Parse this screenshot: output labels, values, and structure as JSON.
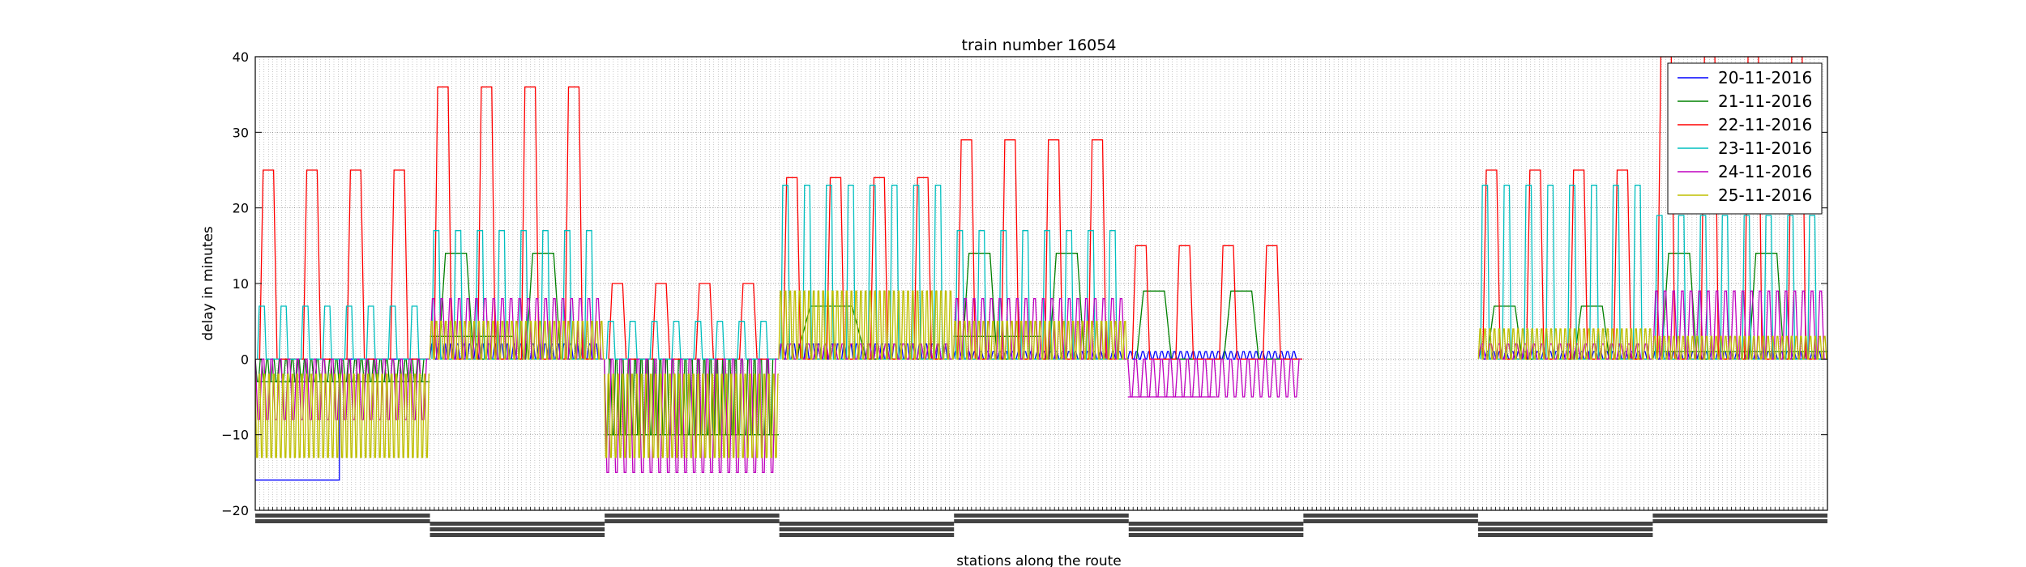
{
  "chart_data": {
    "type": "line",
    "title": "train number 16054",
    "xlabel": "stations along the route",
    "ylabel": "delay in minutes",
    "ylim": [
      -20,
      40
    ],
    "yticks": [
      -20,
      -10,
      0,
      10,
      20,
      30,
      40
    ],
    "ytick_labels": [
      "−20",
      "−10",
      "0",
      "10",
      "20",
      "30",
      "40"
    ],
    "grid": true,
    "legend_position": "top-right",
    "x_tick_count": 360,
    "series": [
      {
        "name": "20-11-2016",
        "color": "#0000ff",
        "segments": [
          {
            "type": "step",
            "x": [
              0,
              0.0535,
              0.0535,
              0.111
            ],
            "y": [
              -16,
              -16,
              0,
              0
            ]
          },
          {
            "type": "osc",
            "x0": 0.111,
            "x1": 0.222,
            "base": 0,
            "peak": 2,
            "period": 0.004
          },
          {
            "type": "osc",
            "x0": 0.333,
            "x1": 0.444,
            "base": 0,
            "peak": 2,
            "period": 0.004
          },
          {
            "type": "osc",
            "x0": 0.444,
            "x1": 0.555,
            "base": 0,
            "peak": 1,
            "period": 0.004
          },
          {
            "type": "osc",
            "x0": 0.555,
            "x1": 0.666,
            "base": 0,
            "peak": 1,
            "period": 0.004
          },
          {
            "type": "osc",
            "x0": 0.778,
            "x1": 0.889,
            "base": 0,
            "peak": 1,
            "period": 0.004
          },
          {
            "type": "osc",
            "x0": 0.889,
            "x1": 1.0,
            "base": 0,
            "peak": 1,
            "period": 0.004
          }
        ]
      },
      {
        "name": "21-11-2016",
        "color": "#008000",
        "segments": [
          {
            "type": "osc",
            "x0": 0,
            "x1": 0.111,
            "base": 0,
            "peak": -3,
            "period": 0.004
          },
          {
            "type": "level",
            "x0": 0,
            "x1": 0.111,
            "y": -3
          },
          {
            "type": "pulse",
            "x0": 0.111,
            "x1": 0.222,
            "base": 0,
            "peak": 14,
            "count": 2
          },
          {
            "type": "level",
            "x0": 0.111,
            "x1": 0.164,
            "y": 3
          },
          {
            "type": "osc",
            "x0": 0.222,
            "x1": 0.333,
            "base": 0,
            "peak": -10,
            "period": 0.004
          },
          {
            "type": "level",
            "x0": 0.222,
            "x1": 0.333,
            "y": -10
          },
          {
            "type": "pulse",
            "x0": 0.333,
            "x1": 0.444,
            "base": 0,
            "peak": 7,
            "count": 1
          },
          {
            "type": "pulse",
            "x0": 0.444,
            "x1": 0.555,
            "base": 0,
            "peak": 14,
            "count": 2
          },
          {
            "type": "level",
            "x0": 0.444,
            "x1": 0.5,
            "y": 3
          },
          {
            "type": "pulse",
            "x0": 0.555,
            "x1": 0.666,
            "base": 0,
            "peak": 9,
            "count": 2
          },
          {
            "type": "pulse",
            "x0": 0.778,
            "x1": 0.889,
            "base": 0,
            "peak": 7,
            "count": 2
          },
          {
            "type": "pulse",
            "x0": 0.889,
            "x1": 1.0,
            "base": 0,
            "peak": 14,
            "count": 2
          },
          {
            "type": "level",
            "x0": 0.889,
            "x1": 1.0,
            "y": 1
          }
        ]
      },
      {
        "name": "22-11-2016",
        "color": "#ff0000",
        "segments": [
          {
            "type": "pulse",
            "x0": 0,
            "x1": 0.111,
            "base": 0,
            "peak": 25,
            "count": 4
          },
          {
            "type": "pulse",
            "x0": 0.111,
            "x1": 0.222,
            "base": 0,
            "peak": 36,
            "count": 4
          },
          {
            "type": "pulse",
            "x0": 0.222,
            "x1": 0.333,
            "base": 0,
            "peak": 10,
            "count": 4
          },
          {
            "type": "pulse",
            "x0": 0.333,
            "x1": 0.444,
            "base": 0,
            "peak": 24,
            "count": 4
          },
          {
            "type": "pulse",
            "x0": 0.444,
            "x1": 0.555,
            "base": 0,
            "peak": 29,
            "count": 4
          },
          {
            "type": "pulse",
            "x0": 0.555,
            "x1": 0.666,
            "base": 0,
            "peak": 15,
            "count": 4
          },
          {
            "type": "pulse",
            "x0": 0.778,
            "x1": 0.889,
            "base": 0,
            "peak": 25,
            "count": 4
          },
          {
            "type": "pulse",
            "x0": 0.889,
            "x1": 1.0,
            "base": 0,
            "peak": 40,
            "count": 4
          }
        ]
      },
      {
        "name": "23-11-2016",
        "color": "#00bfbf",
        "segments": [
          {
            "type": "pulse",
            "x0": 0,
            "x1": 0.111,
            "base": 0,
            "peak": 7,
            "count": 8
          },
          {
            "type": "pulse",
            "x0": 0.111,
            "x1": 0.222,
            "base": 0,
            "peak": 17,
            "count": 8
          },
          {
            "type": "pulse",
            "x0": 0.222,
            "x1": 0.333,
            "base": 0,
            "peak": 5,
            "count": 8
          },
          {
            "type": "pulse",
            "x0": 0.333,
            "x1": 0.444,
            "base": 0,
            "peak": 23,
            "count": 8
          },
          {
            "type": "pulse",
            "x0": 0.444,
            "x1": 0.555,
            "base": 0,
            "peak": 17,
            "count": 8
          },
          {
            "type": "pulse",
            "x0": 0.778,
            "x1": 0.889,
            "base": 0,
            "peak": 23,
            "count": 8
          },
          {
            "type": "pulse",
            "x0": 0.889,
            "x1": 1.0,
            "base": 0,
            "peak": 19,
            "count": 8
          }
        ]
      },
      {
        "name": "24-11-2016",
        "color": "#bf00bf",
        "segments": [
          {
            "type": "osc",
            "x0": 0,
            "x1": 0.111,
            "base": 0,
            "peak": -8,
            "period": 0.0055
          },
          {
            "type": "osc",
            "x0": 0.111,
            "x1": 0.222,
            "base": 0,
            "peak": 8,
            "period": 0.0055
          },
          {
            "type": "osc",
            "x0": 0.222,
            "x1": 0.333,
            "base": 0,
            "peak": -15,
            "period": 0.0055
          },
          {
            "type": "osc",
            "x0": 0.333,
            "x1": 0.444,
            "base": 0,
            "peak": 2,
            "period": 0.0055
          },
          {
            "type": "osc",
            "x0": 0.444,
            "x1": 0.555,
            "base": 0,
            "peak": 8,
            "period": 0.0055
          },
          {
            "type": "osc",
            "x0": 0.555,
            "x1": 0.666,
            "base": 0,
            "peak": -5,
            "period": 0.0055
          },
          {
            "type": "level",
            "x0": 0.555,
            "x1": 0.611,
            "y": -5
          },
          {
            "type": "osc",
            "x0": 0.778,
            "x1": 0.889,
            "base": 0,
            "peak": 2,
            "period": 0.0055
          },
          {
            "type": "osc",
            "x0": 0.889,
            "x1": 1.0,
            "base": 0,
            "peak": 9,
            "period": 0.0055
          }
        ]
      },
      {
        "name": "25-11-2016",
        "color": "#bfbf00",
        "segments": [
          {
            "type": "osc",
            "x0": 0,
            "x1": 0.111,
            "base": -2,
            "peak": -13,
            "period": 0.003
          },
          {
            "type": "osc",
            "x0": 0.111,
            "x1": 0.222,
            "base": 0,
            "peak": 5,
            "period": 0.003
          },
          {
            "type": "osc",
            "x0": 0.222,
            "x1": 0.333,
            "base": -2,
            "peak": -13,
            "period": 0.003
          },
          {
            "type": "osc",
            "x0": 0.333,
            "x1": 0.444,
            "base": 0,
            "peak": 9,
            "period": 0.003
          },
          {
            "type": "osc",
            "x0": 0.444,
            "x1": 0.555,
            "base": 0,
            "peak": 5,
            "period": 0.003
          },
          {
            "type": "osc",
            "x0": 0.778,
            "x1": 0.889,
            "base": 0,
            "peak": 4,
            "period": 0.003
          },
          {
            "type": "osc",
            "x0": 0.889,
            "x1": 1.0,
            "base": 0,
            "peak": 3,
            "period": 0.003
          }
        ]
      }
    ]
  }
}
